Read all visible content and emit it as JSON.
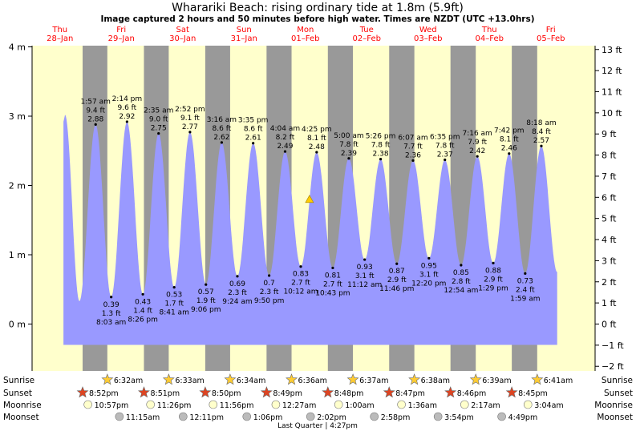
{
  "chart_data": {
    "type": "area",
    "title": "Wharariki Beach: rising  ordinary tide at 1.8m (5.9ft)",
    "subtitle": "Image captured 2 hours and 50 minutes before high water. Times are NZDT (UTC +13.0hrs)",
    "ylim_m": [
      -0.55,
      4.0
    ],
    "y_ticks_m": [
      "4 m",
      "3 m",
      "2 m",
      "1 m",
      "0 m"
    ],
    "y_ticks_ft": [
      "13 ft",
      "12 ft",
      "11 ft",
      "10 ft",
      "9 ft",
      "8 ft",
      "7 ft",
      "6 ft",
      "5 ft",
      "4 ft",
      "3 ft",
      "2 ft",
      "1 ft",
      "0 ft",
      "−1 ft",
      "−2 ft"
    ],
    "days": [
      {
        "dow": "Thu",
        "date": "28–Jan"
      },
      {
        "dow": "Fri",
        "date": "29–Jan"
      },
      {
        "dow": "Sat",
        "date": "30–Jan"
      },
      {
        "dow": "Sun",
        "date": "31–Jan"
      },
      {
        "dow": "Mon",
        "date": "01–Feb"
      },
      {
        "dow": "Tue",
        "date": "02–Feb"
      },
      {
        "dow": "Wed",
        "date": "03–Feb"
      },
      {
        "dow": "Thu",
        "date": "04–Feb"
      },
      {
        "dow": "Fri",
        "date": "05–Feb"
      }
    ],
    "high_tides": [
      {
        "day": 1,
        "time": "1:57 am",
        "ft": "9.4 ft",
        "m": 2.88
      },
      {
        "day": 1,
        "time": "2:14 pm",
        "ft": "9.6 ft",
        "m": 2.92
      },
      {
        "day": 2,
        "time": "2:35 am",
        "ft": "9.0 ft",
        "m": 2.75
      },
      {
        "day": 2,
        "time": "2:52 pm",
        "ft": "9.1 ft",
        "m": 2.77
      },
      {
        "day": 3,
        "time": "3:16 am",
        "ft": "8.6 ft",
        "m": 2.62
      },
      {
        "day": 3,
        "time": "3:35 pm",
        "ft": "8.6 ft",
        "m": 2.61
      },
      {
        "day": 4,
        "time": "4:04 am",
        "ft": "8.2 ft",
        "m": 2.49
      },
      {
        "day": 4,
        "time": "4:25 pm",
        "ft": "8.1 ft",
        "m": 2.48
      },
      {
        "day": 5,
        "time": "5:00 am",
        "ft": "7.8 ft",
        "m": 2.39
      },
      {
        "day": 5,
        "time": "5:26 pm",
        "ft": "7.8 ft",
        "m": 2.38
      },
      {
        "day": 6,
        "time": "6:07 am",
        "ft": "7.7 ft",
        "m": 2.36
      },
      {
        "day": 6,
        "time": "6:35 pm",
        "ft": "7.8 ft",
        "m": 2.37
      },
      {
        "day": 7,
        "time": "7:16 am",
        "ft": "7.9 ft",
        "m": 2.42
      },
      {
        "day": 7,
        "time": "7:42 pm",
        "ft": "8.1 ft",
        "m": 2.46
      },
      {
        "day": 8,
        "time": "8:18 am",
        "ft": "8.4 ft",
        "m": 2.57
      }
    ],
    "low_tides": [
      {
        "day": 1,
        "time": "8:03 am",
        "ft": "1.3 ft",
        "m": 0.39
      },
      {
        "day": 1,
        "time": "8:26 pm",
        "ft": "1.4 ft",
        "m": 0.43
      },
      {
        "day": 2,
        "time": "8:41 am",
        "ft": "1.7 ft",
        "m": 0.53
      },
      {
        "day": 2,
        "time": "9:06 pm",
        "ft": "1.9 ft",
        "m": 0.57
      },
      {
        "day": 3,
        "time": "9:24 am",
        "ft": "2.3 ft",
        "m": 0.69
      },
      {
        "day": 3,
        "time": "9:50 pm",
        "ft": "2.3 ft",
        "m": 0.7
      },
      {
        "day": 4,
        "time": "10:12 am",
        "ft": "2.7 ft",
        "m": 0.83
      },
      {
        "day": 4,
        "time": "10:43 pm",
        "ft": "2.7 ft",
        "m": 0.81
      },
      {
        "day": 5,
        "time": "11:12 am",
        "ft": "3.1 ft",
        "m": 0.93
      },
      {
        "day": 5,
        "time": "11:46 pm",
        "ft": "2.9 ft",
        "m": 0.87
      },
      {
        "day": 6,
        "time": "12:20 pm",
        "ft": "3.1 ft",
        "m": 0.95
      },
      {
        "day": 7,
        "time": "12:54 am",
        "ft": "2.8 ft",
        "m": 0.85
      },
      {
        "day": 7,
        "time": "1:29 pm",
        "ft": "2.9 ft",
        "m": 0.88
      },
      {
        "day": 8,
        "time": "1:59 am",
        "ft": "2.4 ft",
        "m": 0.73
      }
    ],
    "current": {
      "day": 4,
      "time": "1:37 pm",
      "m": 1.8
    },
    "sun_moon": {
      "row_labels": [
        "Sunrise",
        "Sunset",
        "Moonrise",
        "Moonset"
      ],
      "sunrise": [
        {
          "day": 1,
          "time": "6:32am"
        },
        {
          "day": 2,
          "time": "6:33am"
        },
        {
          "day": 3,
          "time": "6:34am"
        },
        {
          "day": 4,
          "time": "6:36am"
        },
        {
          "day": 5,
          "time": "6:37am"
        },
        {
          "day": 6,
          "time": "6:38am"
        },
        {
          "day": 7,
          "time": "6:39am"
        },
        {
          "day": 8,
          "time": "6:41am"
        }
      ],
      "sunset": [
        {
          "day": 0,
          "time": "8:52pm"
        },
        {
          "day": 1,
          "time": "8:51pm"
        },
        {
          "day": 2,
          "time": "8:50pm"
        },
        {
          "day": 3,
          "time": "8:49pm"
        },
        {
          "day": 4,
          "time": "8:48pm"
        },
        {
          "day": 5,
          "time": "8:47pm"
        },
        {
          "day": 6,
          "time": "8:46pm"
        },
        {
          "day": 7,
          "time": "8:45pm"
        }
      ],
      "moonrise": [
        {
          "day": 0,
          "time": "10:57pm"
        },
        {
          "day": 1,
          "time": "11:26pm"
        },
        {
          "day": 2,
          "time": "11:56pm"
        },
        {
          "day": 4,
          "time": "12:27am"
        },
        {
          "day": 5,
          "time": "1:00am"
        },
        {
          "day": 6,
          "time": "1:36am"
        },
        {
          "day": 7,
          "time": "2:17am"
        },
        {
          "day": 8,
          "time": "3:04am"
        }
      ],
      "moonset": [
        {
          "day": 1,
          "time": "11:15am"
        },
        {
          "day": 2,
          "time": "12:11pm"
        },
        {
          "day": 3,
          "time": "1:06pm"
        },
        {
          "day": 4,
          "time": "2:02pm"
        },
        {
          "day": 5,
          "time": "2:58pm"
        },
        {
          "day": 6,
          "time": "3:54pm"
        },
        {
          "day": 7,
          "time": "4:49pm"
        }
      ]
    },
    "moon_phase": "Last Quarter | 4:27pm",
    "colors": {
      "day": "#ffffcc",
      "night": "#999999",
      "water": "#9999ff",
      "day_label": "#ff0000",
      "current_marker": "#ffcc00",
      "sunrise": "#ffcc33",
      "sunset": "#dd4422",
      "moonrise": "#ffffcc",
      "moonset": "#bbbbbb"
    }
  }
}
